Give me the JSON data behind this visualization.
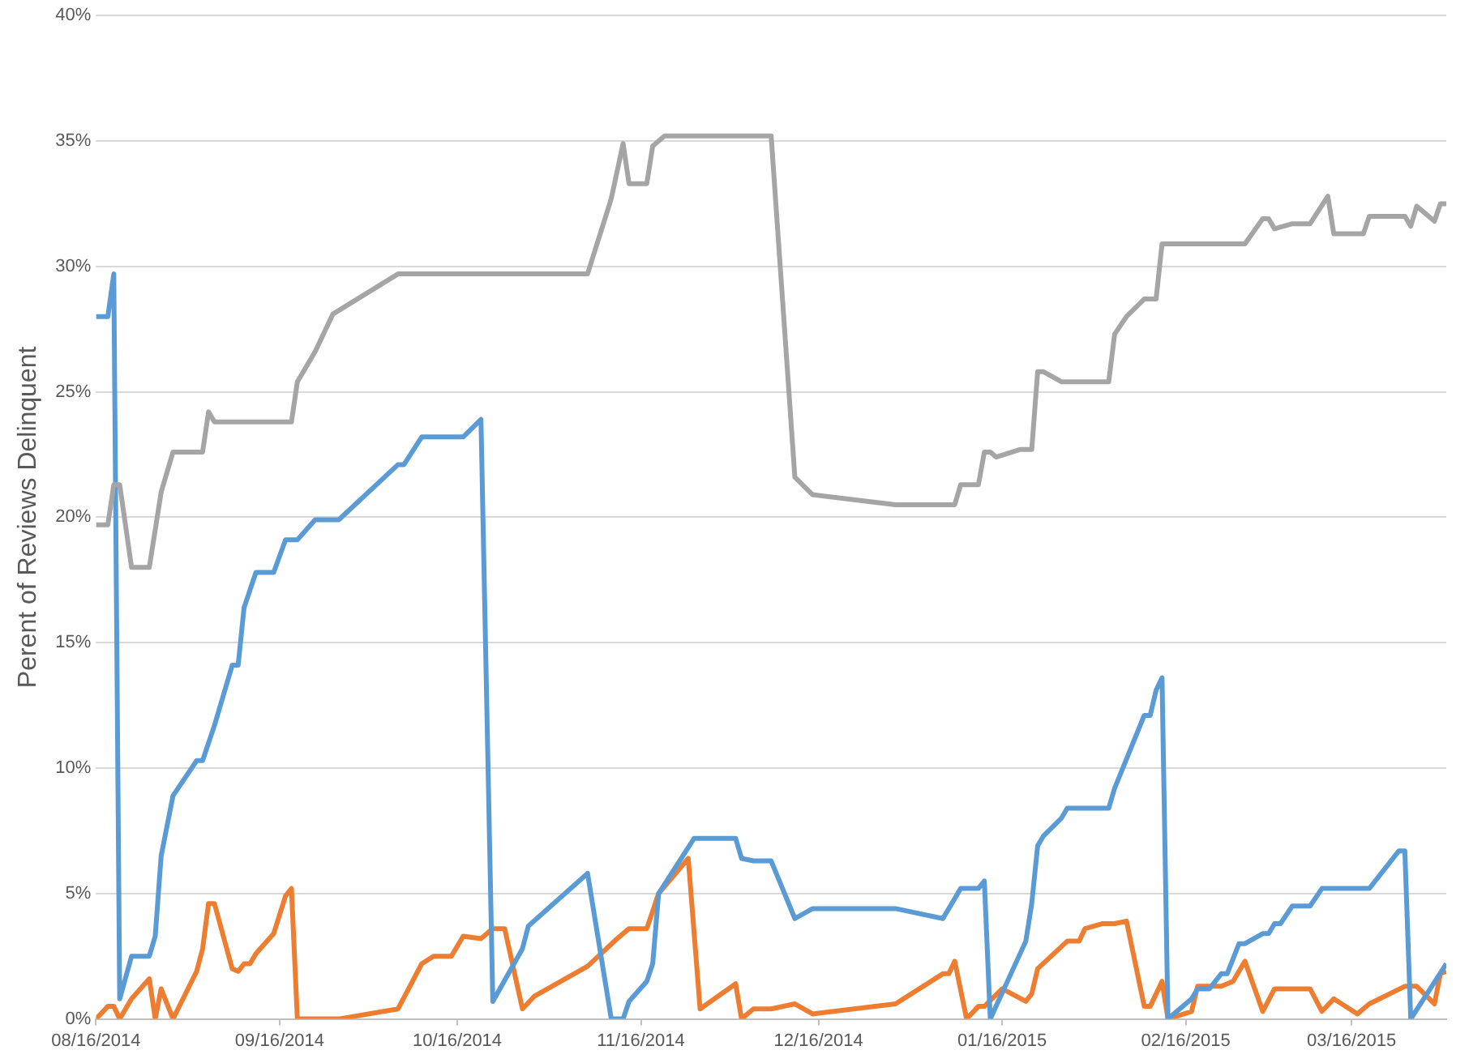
{
  "chart_data": {
    "type": "line",
    "ylabel": "Perent of Reviews Delinquent",
    "xlim": [
      "2014-08-16",
      "2015-04-01"
    ],
    "ylim": [
      0,
      40
    ],
    "xticks": [
      {
        "value": "2014-08-16",
        "label": "08/16/2014"
      },
      {
        "value": "2014-09-16",
        "label": "09/16/2014"
      },
      {
        "value": "2014-10-16",
        "label": "10/16/2014"
      },
      {
        "value": "2014-11-16",
        "label": "11/16/2014"
      },
      {
        "value": "2014-12-16",
        "label": "12/16/2014"
      },
      {
        "value": "2015-01-16",
        "label": "01/16/2015"
      },
      {
        "value": "2015-02-16",
        "label": "02/16/2015"
      },
      {
        "value": "2015-03-16",
        "label": "03/16/2015"
      }
    ],
    "yticks": [
      {
        "value": 0,
        "label": "0%"
      },
      {
        "value": 5,
        "label": "5%"
      },
      {
        "value": 10,
        "label": "10%"
      },
      {
        "value": 15,
        "label": "15%"
      },
      {
        "value": 20,
        "label": "20%"
      },
      {
        "value": 25,
        "label": "25%"
      },
      {
        "value": 30,
        "label": "30%"
      },
      {
        "value": 35,
        "label": "35%"
      },
      {
        "value": 40,
        "label": "40%"
      }
    ],
    "grid": "y",
    "series": [
      {
        "color": "#a5a5a5",
        "x": [
          "2014-08-16",
          "2014-08-18",
          "2014-08-19",
          "2014-08-20",
          "2014-08-22",
          "2014-08-25",
          "2014-08-27",
          "2014-08-29",
          "2014-09-03",
          "2014-09-04",
          "2014-09-05",
          "2014-09-18",
          "2014-09-19",
          "2014-09-22",
          "2014-09-25",
          "2014-10-06",
          "2014-11-07",
          "2014-11-11",
          "2014-11-13",
          "2014-11-14",
          "2014-11-17",
          "2014-11-18",
          "2014-11-20",
          "2014-12-08",
          "2014-12-12",
          "2014-12-15",
          "2014-12-29",
          "2015-01-08",
          "2015-01-09",
          "2015-01-12",
          "2015-01-13",
          "2015-01-14",
          "2015-01-15",
          "2015-01-19",
          "2015-01-21",
          "2015-01-22",
          "2015-01-23",
          "2015-01-26",
          "2015-02-03",
          "2015-02-04",
          "2015-02-06",
          "2015-02-09",
          "2015-02-11",
          "2015-02-12",
          "2015-02-26",
          "2015-03-01",
          "2015-03-02",
          "2015-03-03",
          "2015-03-06",
          "2015-03-09",
          "2015-03-12",
          "2015-03-13",
          "2015-03-18",
          "2015-03-19",
          "2015-03-25",
          "2015-03-26",
          "2015-03-27",
          "2015-03-30",
          "2015-03-31",
          "2015-04-01"
        ],
        "values": [
          19.7,
          19.7,
          21.3,
          21.3,
          18.0,
          18.0,
          21.0,
          22.6,
          22.6,
          24.2,
          23.8,
          23.8,
          25.4,
          26.6,
          28.1,
          29.7,
          29.7,
          32.7,
          34.9,
          33.3,
          33.3,
          34.8,
          35.2,
          35.2,
          21.6,
          20.9,
          20.5,
          20.5,
          21.3,
          21.3,
          22.6,
          22.6,
          22.4,
          22.7,
          22.7,
          25.8,
          25.8,
          25.4,
          25.4,
          27.3,
          28.0,
          28.7,
          28.7,
          30.9,
          30.9,
          31.9,
          31.9,
          31.5,
          31.7,
          31.7,
          32.8,
          31.3,
          31.3,
          32.0,
          32.0,
          31.6,
          32.4,
          31.8,
          32.5,
          32.5
        ]
      },
      {
        "color": "#5b9bd5",
        "x": [
          "2014-08-16",
          "2014-08-18",
          "2014-08-19",
          "2014-08-20",
          "2014-08-22",
          "2014-08-25",
          "2014-08-26",
          "2014-08-27",
          "2014-08-29",
          "2014-09-02",
          "2014-09-03",
          "2014-09-05",
          "2014-09-08",
          "2014-09-09",
          "2014-09-10",
          "2014-09-12",
          "2014-09-15",
          "2014-09-17",
          "2014-09-19",
          "2014-09-22",
          "2014-09-26",
          "2014-10-06",
          "2014-10-07",
          "2014-10-10",
          "2014-10-17",
          "2014-10-20",
          "2014-10-22",
          "2014-10-27",
          "2014-10-28",
          "2014-11-07",
          "2014-11-11",
          "2014-11-13",
          "2014-11-14",
          "2014-11-17",
          "2014-11-18",
          "2014-11-19",
          "2014-11-25",
          "2014-12-02",
          "2014-12-03",
          "2014-12-05",
          "2014-12-08",
          "2014-12-12",
          "2014-12-15",
          "2014-12-29",
          "2015-01-06",
          "2015-01-09",
          "2015-01-12",
          "2015-01-13",
          "2015-01-14",
          "2015-01-20",
          "2015-01-21",
          "2015-01-22",
          "2015-01-23",
          "2015-01-26",
          "2015-01-27",
          "2015-02-03",
          "2015-02-04",
          "2015-02-09",
          "2015-02-10",
          "2015-02-11",
          "2015-02-12",
          "2015-02-13",
          "2015-02-17",
          "2015-02-18",
          "2015-02-20",
          "2015-02-22",
          "2015-02-23",
          "2015-02-24",
          "2015-02-25",
          "2015-02-26",
          "2015-03-01",
          "2015-03-02",
          "2015-03-03",
          "2015-03-04",
          "2015-03-06",
          "2015-03-09",
          "2015-03-11",
          "2015-03-19",
          "2015-03-24",
          "2015-03-25",
          "2015-03-26",
          "2015-04-01"
        ],
        "values": [
          28.0,
          28.0,
          29.7,
          0.8,
          2.5,
          2.5,
          3.3,
          6.5,
          8.9,
          10.3,
          10.3,
          11.7,
          14.1,
          14.1,
          16.4,
          17.8,
          17.8,
          19.1,
          19.1,
          19.9,
          19.9,
          22.1,
          22.1,
          23.2,
          23.2,
          23.9,
          0.7,
          2.8,
          3.7,
          5.8,
          0,
          0,
          0.7,
          1.5,
          2.2,
          5.0,
          7.2,
          7.2,
          6.4,
          6.3,
          6.3,
          4.0,
          4.4,
          4.4,
          4.0,
          5.2,
          5.2,
          5.5,
          0,
          3.1,
          4.6,
          6.9,
          7.3,
          8.0,
          8.4,
          8.4,
          9.2,
          12.1,
          12.1,
          13.1,
          13.6,
          0,
          0.8,
          1.2,
          1.2,
          1.8,
          1.8,
          2.4,
          3.0,
          3.0,
          3.4,
          3.4,
          3.8,
          3.8,
          4.5,
          4.5,
          5.2,
          5.2,
          6.7,
          6.7,
          0,
          2.2
        ]
      },
      {
        "color": "#ed7d31",
        "x": [
          "2014-08-16",
          "2014-08-18",
          "2014-08-19",
          "2014-08-20",
          "2014-08-22",
          "2014-08-25",
          "2014-08-26",
          "2014-08-27",
          "2014-08-29",
          "2014-09-02",
          "2014-09-03",
          "2014-09-04",
          "2014-09-05",
          "2014-09-08",
          "2014-09-09",
          "2014-09-10",
          "2014-09-11",
          "2014-09-12",
          "2014-09-15",
          "2014-09-17",
          "2014-09-18",
          "2014-09-19",
          "2014-09-26",
          "2014-10-06",
          "2014-10-10",
          "2014-10-12",
          "2014-10-15",
          "2014-10-17",
          "2014-10-20",
          "2014-10-22",
          "2014-10-24",
          "2014-10-27",
          "2014-10-29",
          "2014-11-07",
          "2014-11-12",
          "2014-11-14",
          "2014-11-17",
          "2014-11-19",
          "2014-11-24",
          "2014-11-26",
          "2014-12-02",
          "2014-12-03",
          "2014-12-05",
          "2014-12-08",
          "2014-12-12",
          "2014-12-15",
          "2014-12-29",
          "2015-01-06",
          "2015-01-07",
          "2015-01-08",
          "2015-01-10",
          "2015-01-12",
          "2015-01-13",
          "2015-01-16",
          "2015-01-20",
          "2015-01-21",
          "2015-01-22",
          "2015-01-27",
          "2015-01-29",
          "2015-01-30",
          "2015-02-02",
          "2015-02-04",
          "2015-02-06",
          "2015-02-09",
          "2015-02-10",
          "2015-02-12",
          "2015-02-13",
          "2015-02-17",
          "2015-02-18",
          "2015-02-22",
          "2015-02-24",
          "2015-02-26",
          "2015-03-01",
          "2015-03-03",
          "2015-03-09",
          "2015-03-11",
          "2015-03-13",
          "2015-03-17",
          "2015-03-19",
          "2015-03-25",
          "2015-03-27",
          "2015-03-30",
          "2015-03-31",
          "2015-04-01"
        ],
        "values": [
          0,
          0.5,
          0.5,
          0,
          0.8,
          1.6,
          0,
          1.2,
          0,
          1.9,
          2.8,
          4.6,
          4.6,
          2.0,
          1.9,
          2.2,
          2.2,
          2.6,
          3.4,
          4.9,
          5.2,
          0,
          0,
          0.4,
          2.2,
          2.5,
          2.5,
          3.3,
          3.2,
          3.6,
          3.6,
          0.4,
          0.9,
          2.1,
          3.2,
          3.6,
          3.6,
          5.0,
          6.4,
          0.4,
          1.4,
          0,
          0.4,
          0.4,
          0.6,
          0.2,
          0.6,
          1.8,
          1.8,
          2.3,
          0,
          0.5,
          0.5,
          1.2,
          0.7,
          1.0,
          2.0,
          3.1,
          3.1,
          3.6,
          3.8,
          3.8,
          3.9,
          0.5,
          0.5,
          1.5,
          0,
          0.3,
          1.3,
          1.3,
          1.5,
          2.3,
          0.3,
          1.2,
          1.2,
          0.3,
          0.8,
          0.2,
          0.6,
          1.3,
          1.3,
          0.6,
          1.8,
          1.9
        ]
      }
    ]
  }
}
